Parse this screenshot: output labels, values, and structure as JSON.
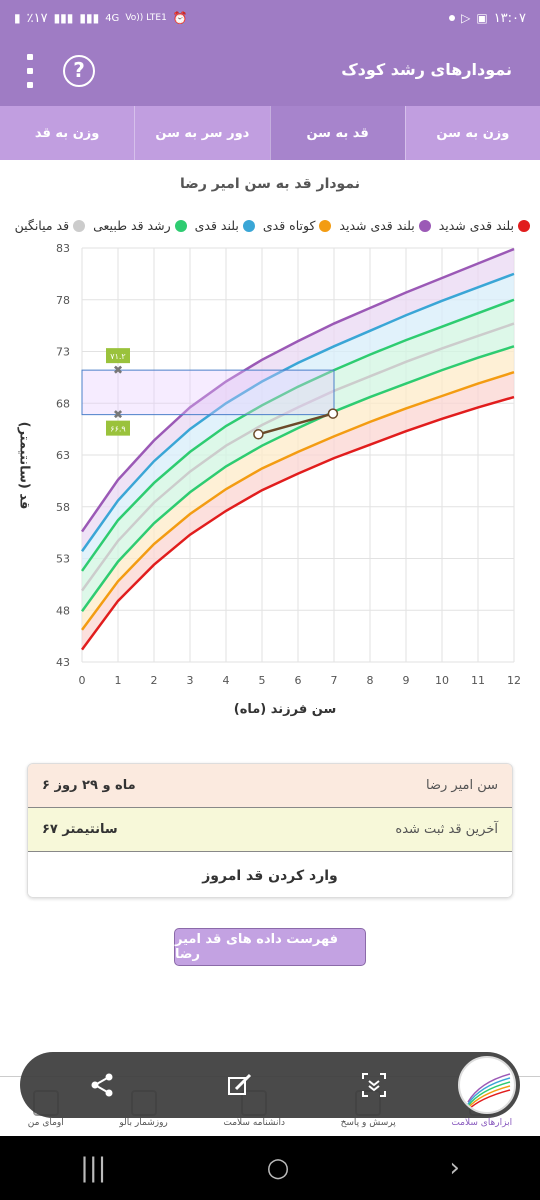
{
  "status_bar": {
    "time": "۱۳:۰۷",
    "battery": "٪۱۷",
    "network": "4G",
    "volte": "Vo)) LTE1"
  },
  "app_bar": {
    "title": "نمودارهای رشد کودک",
    "help_label": "?"
  },
  "tabs": [
    {
      "label": "وزن به سن",
      "active": false
    },
    {
      "label": "قد به سن",
      "active": true
    },
    {
      "label": "دور سر به سن",
      "active": false
    },
    {
      "label": "وزن به قد",
      "active": false
    }
  ],
  "chart_title": "نمودار قد به سن امیر رضا",
  "chart_data": {
    "type": "line",
    "xlabel": "سن فرزند (ماه)",
    "ylabel": "قد (سانتیمتر)",
    "xlim": [
      0,
      12
    ],
    "ylim": [
      43,
      83
    ],
    "x_ticks": [
      0,
      1,
      2,
      3,
      4,
      5,
      6,
      7,
      8,
      9,
      10,
      11,
      12
    ],
    "y_ticks": [
      43,
      48,
      53,
      58,
      63,
      68,
      73,
      78,
      83
    ],
    "grid": true,
    "legend_position": "top",
    "x": [
      0,
      1,
      2,
      3,
      4,
      5,
      6,
      7,
      8,
      9,
      10,
      11,
      12
    ],
    "series": [
      {
        "name": "بلند قدی شدید",
        "color": "#9b59b6",
        "values": [
          55.6,
          60.6,
          64.4,
          67.6,
          70.1,
          72.2,
          74.0,
          75.7,
          77.2,
          78.7,
          80.1,
          81.5,
          82.9
        ]
      },
      {
        "name": "بلند قدی",
        "color": "#3aa6d6",
        "values": [
          53.7,
          58.6,
          62.4,
          65.5,
          68.0,
          70.1,
          71.9,
          73.5,
          75.0,
          76.5,
          77.9,
          79.2,
          80.5
        ]
      },
      {
        "name": "رشد قد طبیعی",
        "color": "#2ecc71",
        "values": [
          51.8,
          56.7,
          60.3,
          63.3,
          65.8,
          67.8,
          69.6,
          71.2,
          72.7,
          74.1,
          75.4,
          76.7,
          78.0
        ]
      },
      {
        "name": "قد میانگین",
        "color": "#cccccc",
        "values": [
          49.9,
          54.7,
          58.4,
          61.4,
          63.9,
          65.9,
          67.6,
          69.2,
          70.6,
          72.0,
          73.3,
          74.5,
          75.7
        ]
      },
      {
        "name": "رشد قد طبیعی",
        "color": "#2ecc71",
        "values": [
          47.9,
          52.7,
          56.4,
          59.4,
          61.9,
          63.9,
          65.6,
          67.2,
          68.6,
          69.9,
          71.2,
          72.4,
          73.5
        ]
      },
      {
        "name": "کوتاه قدی",
        "color": "#f39c12",
        "values": [
          46.1,
          50.8,
          54.4,
          57.3,
          59.7,
          61.7,
          63.3,
          64.8,
          66.2,
          67.5,
          68.7,
          69.9,
          71.0
        ]
      },
      {
        "name": "بلند قدی شدید",
        "color": "#e11d1d",
        "values": [
          44.2,
          48.9,
          52.4,
          55.3,
          57.6,
          59.6,
          61.2,
          62.7,
          64.0,
          65.3,
          66.5,
          67.6,
          68.6
        ]
      }
    ],
    "child_points": [
      {
        "x": 4.9,
        "y": 65.0
      },
      {
        "x": 6.97,
        "y": 67.0
      }
    ],
    "range_band": {
      "x_from": 0,
      "x_to": 7,
      "low": 66.9,
      "high": 71.2,
      "low_label": "۶۶.۹",
      "high_label": "۷۱.۲"
    }
  },
  "legend": [
    {
      "label": "بلند قدی شدید",
      "color": "#e11d1d"
    },
    {
      "label": "بلند قدی شدید",
      "color": "#9b59b6"
    },
    {
      "label": "کوتاه قدی",
      "color": "#f39c12"
    },
    {
      "label": "بلند قدی",
      "color": "#3aa6d6"
    },
    {
      "label": "رشد قد طبیعی",
      "color": "#2ecc71"
    },
    {
      "label": "قد میانگین",
      "color": "#cccccc"
    }
  ],
  "info": {
    "age_label": "سن امیر رضا",
    "age_value": "۶ ماه و ۲۹ روز",
    "last_height_label": "آخرین قد ثبت شده",
    "last_height_value": "۶۷ سانتیمتر",
    "enter_today": "وارد کردن قد امروز"
  },
  "list_button": "فهرست داده های قد امیر رضا",
  "bottom_nav": [
    {
      "label": "ابزارهای سلامت",
      "icon": "medkit-icon",
      "active": true
    },
    {
      "label": "پرسش و پاسخ",
      "icon": "question-icon",
      "active": false
    },
    {
      "label": "دانشنامه سلامت",
      "icon": "book-icon",
      "active": false
    },
    {
      "label": "روزشمار بالو",
      "icon": "calendar-icon",
      "active": false
    },
    {
      "label": "اومای من",
      "icon": "profile-icon",
      "active": false
    }
  ]
}
